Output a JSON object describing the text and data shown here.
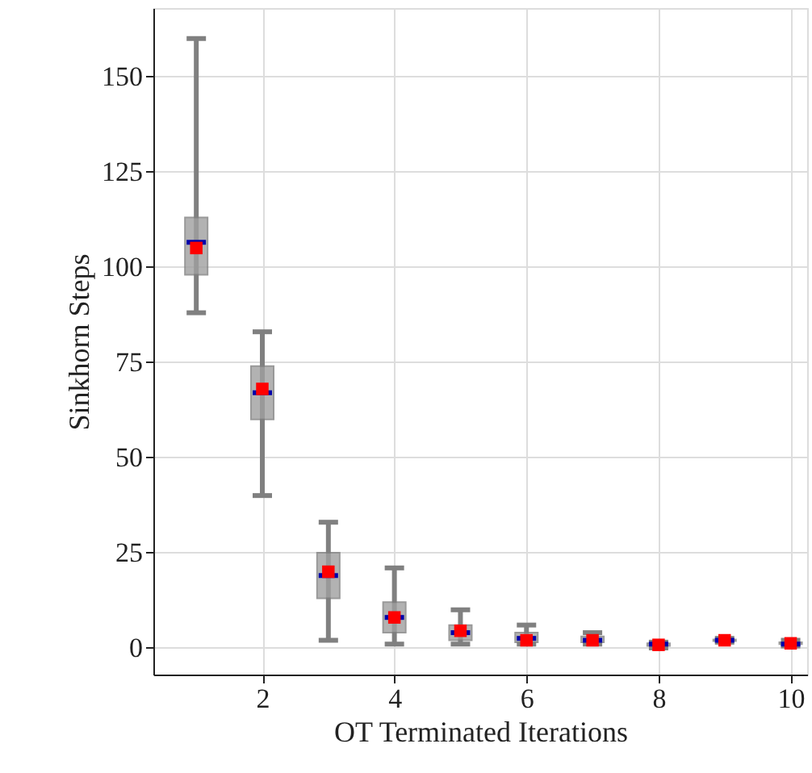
{
  "chart_data": {
    "type": "box",
    "xlabel": "OT Terminated Iterations",
    "ylabel": "Sinkhorn Steps",
    "x": [
      1,
      2,
      3,
      4,
      5,
      6,
      7,
      8,
      9,
      10
    ],
    "xlim": [
      0.35,
      10.25
    ],
    "xticks": [
      2,
      4,
      6,
      8,
      10
    ],
    "ylim": [
      -7,
      168
    ],
    "yticks": [
      0,
      25,
      50,
      75,
      100,
      125,
      150
    ],
    "grid": true,
    "series": [
      {
        "color": "#a0a0a0",
        "boxes": [
          {
            "low": 88,
            "q1": 98,
            "median": 106.5,
            "q3": 113,
            "high": 160,
            "mean": 105
          },
          {
            "low": 40,
            "q1": 60,
            "median": 67,
            "q3": 74,
            "high": 83,
            "mean": 68
          },
          {
            "low": 2,
            "q1": 13,
            "median": 19,
            "q3": 25,
            "high": 33,
            "mean": 20
          },
          {
            "low": 1,
            "q1": 4,
            "median": 8,
            "q3": 12,
            "high": 21,
            "mean": 8
          },
          {
            "low": 1,
            "q1": 2,
            "median": 4,
            "q3": 6,
            "high": 10,
            "mean": 4.5
          },
          {
            "low": 1,
            "q1": 1.5,
            "median": 2.5,
            "q3": 4,
            "high": 6,
            "mean": 2
          },
          {
            "low": 1,
            "q1": 1.5,
            "median": 2,
            "q3": 3,
            "high": 4,
            "mean": 2
          },
          {
            "low": 0,
            "q1": 0.5,
            "median": 1,
            "q3": 1.2,
            "high": 1.5,
            "mean": 0.8
          },
          {
            "low": 1.5,
            "q1": 1.8,
            "median": 2,
            "q3": 2.2,
            "high": 2.5,
            "mean": 2
          },
          {
            "low": 0.5,
            "q1": 1,
            "median": 1,
            "q3": 1.5,
            "high": 2,
            "mean": 1.2
          }
        ]
      }
    ]
  }
}
